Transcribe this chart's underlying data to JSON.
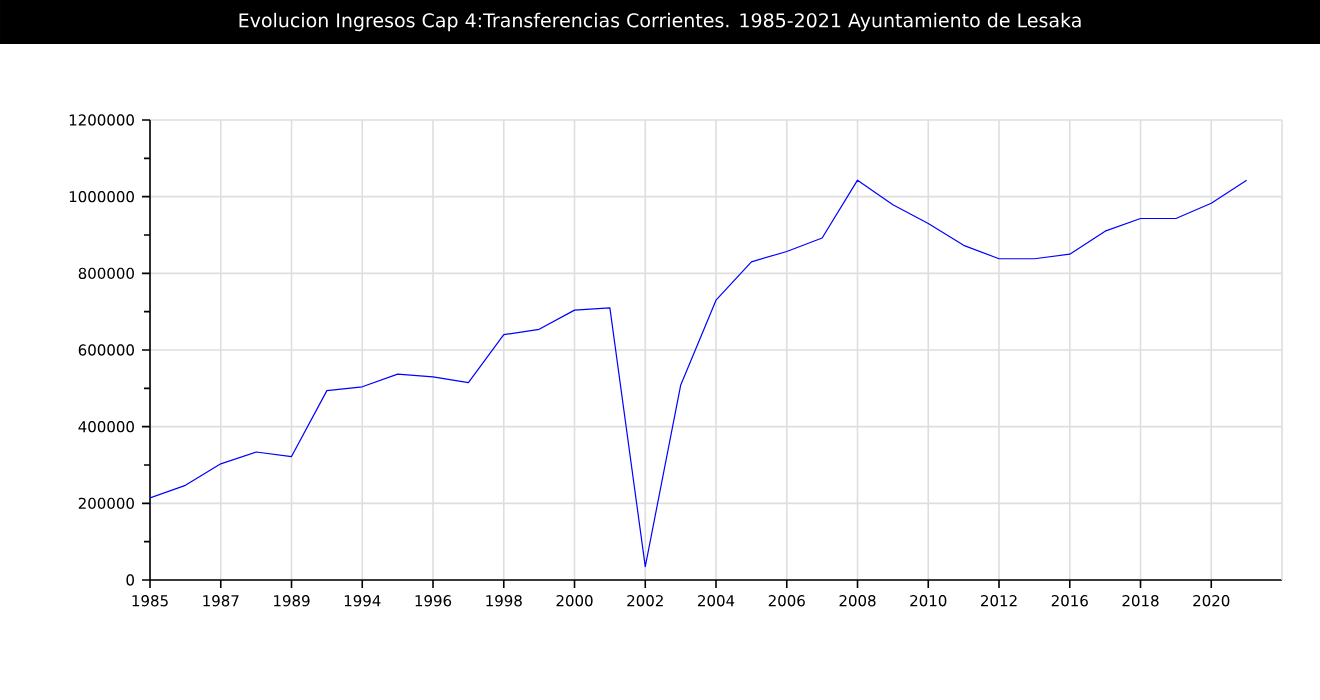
{
  "chart_data": {
    "type": "line",
    "title": "Evolucion Ingresos Cap 4:Transferencias Corrientes. 1985-2021 Ayuntamiento de Lesaka",
    "categories": [
      "1985",
      null,
      "1987",
      null,
      "1989",
      null,
      "1994",
      null,
      "1996",
      null,
      "1998",
      null,
      "2000",
      null,
      "2002",
      null,
      "2004",
      null,
      "2006",
      null,
      "2008",
      null,
      "2010",
      null,
      "2012",
      null,
      "2016",
      null,
      "2018",
      null,
      "2020",
      null
    ],
    "series": [
      {
        "color": "#0000ff",
        "values": [
          214000,
          247000,
          303000,
          334000,
          322000,
          494000,
          504000,
          537000,
          530000,
          515000,
          640000,
          654000,
          704000,
          710000,
          35000,
          508000,
          730000,
          830000,
          857000,
          892000,
          1043000,
          979000,
          930000,
          873000,
          838000,
          838000,
          850000,
          910000,
          943000,
          943000,
          983000,
          1043000
        ]
      }
    ],
    "ylim": [
      0,
      1200000
    ],
    "yticks": [
      0,
      200000,
      400000,
      600000,
      800000,
      1000000,
      1200000
    ],
    "grid": true
  }
}
